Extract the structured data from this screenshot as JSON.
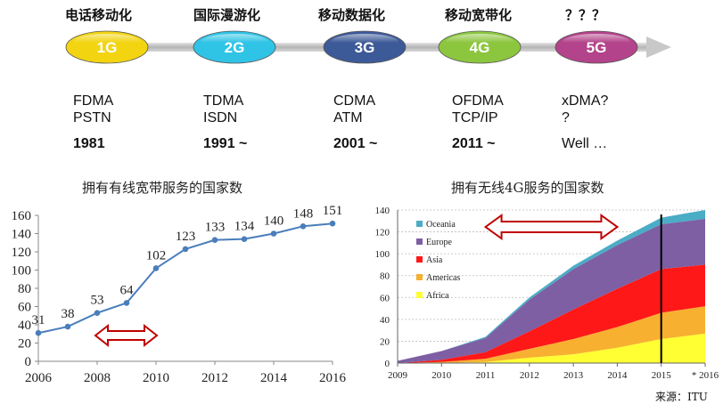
{
  "timeline": {
    "generations": [
      {
        "title": "电话移动化",
        "badge": "1G",
        "tech": "FDMA\nPSTN",
        "year": "1981",
        "color": "#f2d411"
      },
      {
        "title": "国际漫游化",
        "badge": "2G",
        "tech": "TDMA\nISDN",
        "year": "1991 ~",
        "color": "#2fc3e6"
      },
      {
        "title": "移动数据化",
        "badge": "3G",
        "tech": "CDMA\nATM",
        "year": "2001 ~",
        "color": "#3d5a98"
      },
      {
        "title": "移动宽带化",
        "badge": "4G",
        "tech": "OFDMA\nTCP/IP",
        "year": "2011 ~",
        "color": "#8cc63e"
      },
      {
        "title": "？？？",
        "badge": "5G",
        "tech": "xDMA?\n?",
        "year": "Well …",
        "color": "#b3438a"
      }
    ]
  },
  "colors": {
    "arrow": "#c8c8c8",
    "line": "#4a7ebb",
    "arrow_outline": "#c00000"
  },
  "source": "来源：ITU",
  "chart_data": [
    {
      "type": "line",
      "title": "拥有有线宽带服务的国家数",
      "x": [
        2006,
        2007,
        2008,
        2009,
        2010,
        2011,
        2012,
        2013,
        2014,
        2015,
        2016
      ],
      "values": [
        31,
        38,
        53,
        64,
        102,
        123,
        133,
        134,
        140,
        148,
        151
      ],
      "value_labels": [
        "31",
        "38",
        "53",
        "64",
        "102",
        "123",
        "133",
        "134",
        "140",
        "148",
        "151"
      ],
      "x_ticks": [
        "2006",
        "2008",
        "2010",
        "2012",
        "2014",
        "2016"
      ],
      "y_ticks": [
        "0",
        "20",
        "40",
        "60",
        "80",
        "100",
        "120",
        "140",
        "160"
      ],
      "xlim": [
        2006,
        2016
      ],
      "ylim": [
        0,
        160
      ],
      "annotation": "double-headed arrow spanning 2008–2010"
    },
    {
      "type": "area",
      "stacked": true,
      "title": "拥有无线4G服务的国家数",
      "x": [
        2009,
        2010,
        2011,
        2012,
        2013,
        2014,
        2015,
        2016
      ],
      "x_ticks": [
        "2009",
        "2010",
        "2011",
        "2012",
        "2013",
        "2014",
        "2015",
        "* 2016"
      ],
      "y_ticks": [
        "0",
        "20",
        "40",
        "60",
        "80",
        "100",
        "120",
        "140"
      ],
      "xlim": [
        2009,
        2016
      ],
      "ylim": [
        0,
        140
      ],
      "legend_position": "top-left",
      "series": [
        {
          "name": "Africa",
          "color": "#ffff33",
          "values": [
            0,
            0,
            1,
            5,
            8,
            14,
            22,
            27
          ]
        },
        {
          "name": "Americas",
          "color": "#f7b030",
          "values": [
            0,
            1,
            3,
            8,
            14,
            19,
            24,
            25
          ]
        },
        {
          "name": "Asia",
          "color": "#ff1818",
          "values": [
            0,
            2,
            6,
            16,
            27,
            35,
            40,
            38
          ]
        },
        {
          "name": "Europe",
          "color": "#7e5fa3",
          "values": [
            2,
            8,
            13,
            29,
            37,
            40,
            41,
            42
          ]
        },
        {
          "name": "Oceania",
          "color": "#4bacc6",
          "values": [
            0,
            0,
            1,
            2,
            3,
            4,
            6,
            8
          ]
        }
      ],
      "annotation": "vertical line at 2015; double-headed arrow spanning 2011–2014"
    }
  ]
}
